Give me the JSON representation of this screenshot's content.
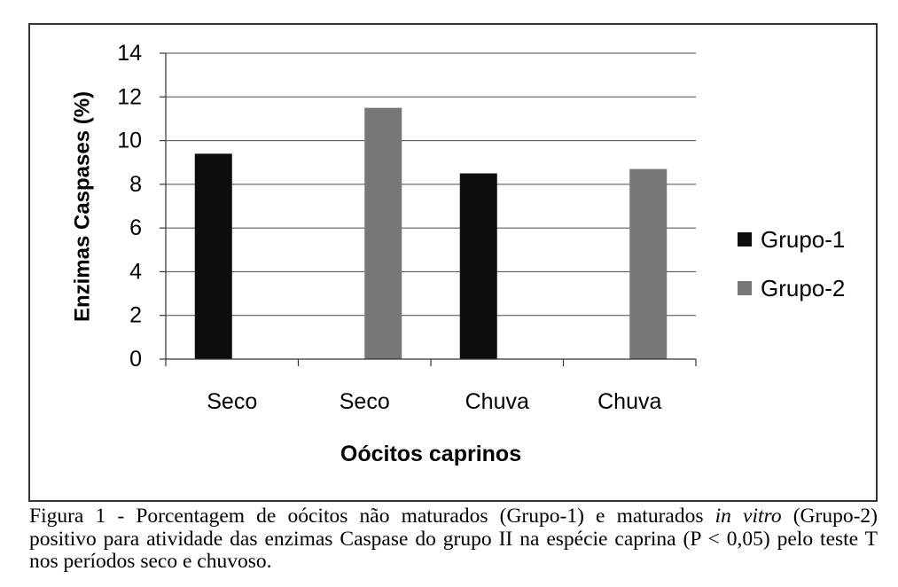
{
  "chart_data": {
    "type": "bar",
    "categories": [
      "Seco",
      "Seco",
      "Chuva",
      "Chuva"
    ],
    "series": [
      {
        "name": "Grupo-1",
        "color": "#0d0d0d",
        "values": [
          9.4,
          null,
          8.5,
          null
        ]
      },
      {
        "name": "Grupo-2",
        "color": "#777777",
        "values": [
          null,
          11.5,
          null,
          8.7
        ]
      }
    ],
    "xlabel": "Oócitos caprinos",
    "ylabel": "Enzimas Caspases (%)",
    "ylim": [
      0,
      14
    ],
    "yticks": [
      0,
      2,
      4,
      6,
      8,
      10,
      12,
      14
    ],
    "grid": true,
    "legend": "right"
  },
  "caption": {
    "line1_start": "Figura 1 - Porcentagem de oócitos não maturados (Grupo-1) e maturados",
    "line1_italic": "in vitro",
    "line1_end": "(Grupo-2)",
    "line2": "positivo para atividade das enzimas Caspase do grupo II na espécie caprina (P < 0,05) pelo teste T",
    "line3": "nos períodos seco e chuvoso."
  }
}
